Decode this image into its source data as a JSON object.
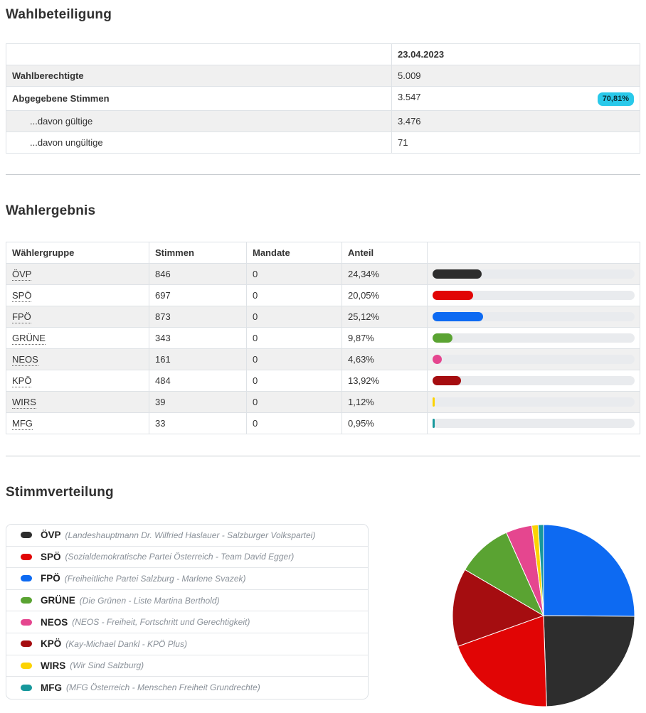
{
  "sections": {
    "turnout_title": "Wahlbeteiligung",
    "results_title": "Wahlergebnis",
    "distribution_title": "Stimmverteilung"
  },
  "turnout": {
    "date_header": "23.04.2023",
    "rows": [
      {
        "label": "Wahlberechtigte",
        "value": "5.009"
      },
      {
        "label": "Abgegebene Stimmen",
        "value": "3.547",
        "badge": "70,81%"
      },
      {
        "label": "...davon gültige",
        "value": "3.476"
      },
      {
        "label": "...davon ungültige",
        "value": "71"
      }
    ],
    "badge_color": "#29c9ea"
  },
  "results": {
    "headers": [
      "Wählergruppe",
      "Stimmen",
      "Mandate",
      "Anteil"
    ],
    "rows": [
      {
        "party": "ÖVP",
        "stimmen": "846",
        "mandate": "0",
        "anteil": "24,34%",
        "share_pct": 24.34,
        "color": "#2d2d2d"
      },
      {
        "party": "SPÖ",
        "stimmen": "697",
        "mandate": "0",
        "anteil": "20,05%",
        "share_pct": 20.05,
        "color": "#e10505"
      },
      {
        "party": "FPÖ",
        "stimmen": "873",
        "mandate": "0",
        "anteil": "25,12%",
        "share_pct": 25.12,
        "color": "#0d6af2"
      },
      {
        "party": "GRÜNE",
        "stimmen": "343",
        "mandate": "0",
        "anteil": "9,87%",
        "share_pct": 9.87,
        "color": "#5aa332"
      },
      {
        "party": "NEOS",
        "stimmen": "161",
        "mandate": "0",
        "anteil": "4,63%",
        "share_pct": 4.63,
        "color": "#e5468f"
      },
      {
        "party": "KPÖ",
        "stimmen": "484",
        "mandate": "0",
        "anteil": "13,92%",
        "share_pct": 13.92,
        "color": "#a50d10"
      },
      {
        "party": "WIRS",
        "stimmen": "39",
        "mandate": "0",
        "anteil": "1,12%",
        "share_pct": 1.12,
        "color": "#fcd303"
      },
      {
        "party": "MFG",
        "stimmen": "33",
        "mandate": "0",
        "anteil": "0,95%",
        "share_pct": 0.95,
        "color": "#17989c"
      }
    ],
    "bar_track_color": "#e9ebee"
  },
  "legend": {
    "items": [
      {
        "party": "ÖVP",
        "desc": "(Landeshauptmann Dr. Wilfried Haslauer - Salzburger Volkspartei)",
        "color": "#2d2d2d"
      },
      {
        "party": "SPÖ",
        "desc": "(Sozialdemokratische Partei Österreich - Team David Egger)",
        "color": "#e10505"
      },
      {
        "party": "FPÖ",
        "desc": "(Freiheitliche Partei Salzburg - Marlene Svazek)",
        "color": "#0d6af2"
      },
      {
        "party": "GRÜNE",
        "desc": "(Die Grünen - Liste Martina Berthold)",
        "color": "#5aa332"
      },
      {
        "party": "NEOS",
        "desc": "(NEOS - Freiheit, Fortschritt und Gerechtigkeit)",
        "color": "#e5468f"
      },
      {
        "party": "KPÖ",
        "desc": "(Kay-Michael Dankl - KPÖ Plus)",
        "color": "#a50d10"
      },
      {
        "party": "WIRS",
        "desc": "(Wir Sind Salzburg)",
        "color": "#fcd303"
      },
      {
        "party": "MFG",
        "desc": "(MFG Österreich - Menschen Freiheit Grundrechte)",
        "color": "#17989c"
      }
    ]
  },
  "chart_data": {
    "type": "pie",
    "title": "Stimmverteilung",
    "start_angle_deg": 0,
    "direction": "clockwise-from-top",
    "legend_position": "left-list",
    "slices": [
      {
        "label": "FPÖ",
        "votes": 873,
        "pct": 25.12,
        "color": "#0d6af2"
      },
      {
        "label": "ÖVP",
        "votes": 846,
        "pct": 24.34,
        "color": "#2d2d2d"
      },
      {
        "label": "SPÖ",
        "votes": 697,
        "pct": 20.05,
        "color": "#e10505"
      },
      {
        "label": "KPÖ",
        "votes": 484,
        "pct": 13.92,
        "color": "#a50d10"
      },
      {
        "label": "GRÜNE",
        "votes": 343,
        "pct": 9.87,
        "color": "#5aa332"
      },
      {
        "label": "NEOS",
        "votes": 161,
        "pct": 4.63,
        "color": "#e5468f"
      },
      {
        "label": "WIRS",
        "votes": 39,
        "pct": 1.12,
        "color": "#fcd303"
      },
      {
        "label": "MFG",
        "votes": 33,
        "pct": 0.95,
        "color": "#17989c"
      }
    ]
  }
}
